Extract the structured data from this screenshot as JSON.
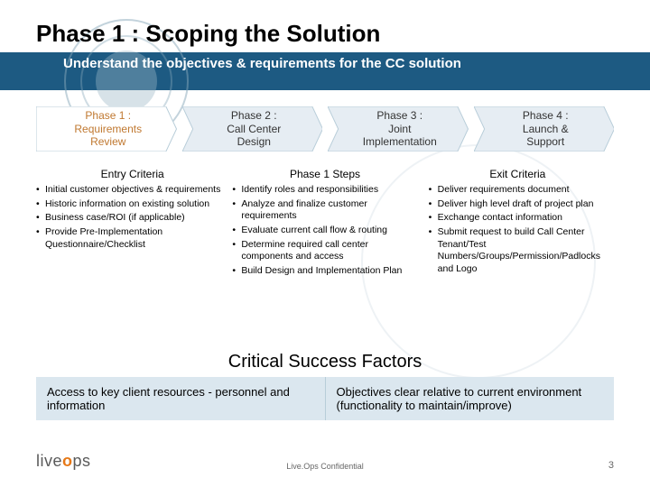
{
  "title": "Phase 1 : Scoping the Solution",
  "subtitle": "Understand the objectives & requirements for the CC solution",
  "phases": [
    {
      "label": "Phase 1 :\nRequirements\nReview",
      "fill": "#ffffff",
      "text": "#c07830"
    },
    {
      "label": "Phase 2 :\nCall Center\nDesign",
      "fill": "#e6edf3",
      "text": "#333333"
    },
    {
      "label": "Phase 3 :\nJoint\nImplementation",
      "fill": "#e6edf3",
      "text": "#333333"
    },
    {
      "label": "Phase 4 :\nLaunch &\nSupport",
      "fill": "#e6edf3",
      "text": "#333333"
    }
  ],
  "section_headers": [
    "Entry Criteria",
    "Phase 1 Steps",
    "Exit Criteria"
  ],
  "entry_criteria": [
    "Initial customer objectives & requirements",
    "Historic information on existing solution",
    "Business case/ROI (if applicable)",
    "Provide Pre-Implementation Questionnaire/Checklist"
  ],
  "phase_steps": [
    "Identify roles and responsibilities",
    "Analyze and finalize customer requirements",
    "Evaluate current call flow & routing",
    "Determine required call center components and access",
    "Build Design and Implementation Plan"
  ],
  "exit_criteria": [
    "Deliver requirements document",
    "Deliver high level draft of project plan",
    "Exchange contact information",
    "Submit request to build Call Center Tenant/Test Numbers/Groups/Permission/Padlocks and Logo"
  ],
  "csf_title": "Critical Success Factors",
  "csf_left": "Access to key client resources - personnel and information",
  "csf_right": "Objectives clear relative to current environment (functionality to maintain/improve)",
  "confidential": "Live.Ops Confidential",
  "page_number": "3",
  "colors": {
    "band": "#1d5a82",
    "chevron_inactive": "#e6edf3",
    "csf_bg": "#dbe7ef"
  }
}
